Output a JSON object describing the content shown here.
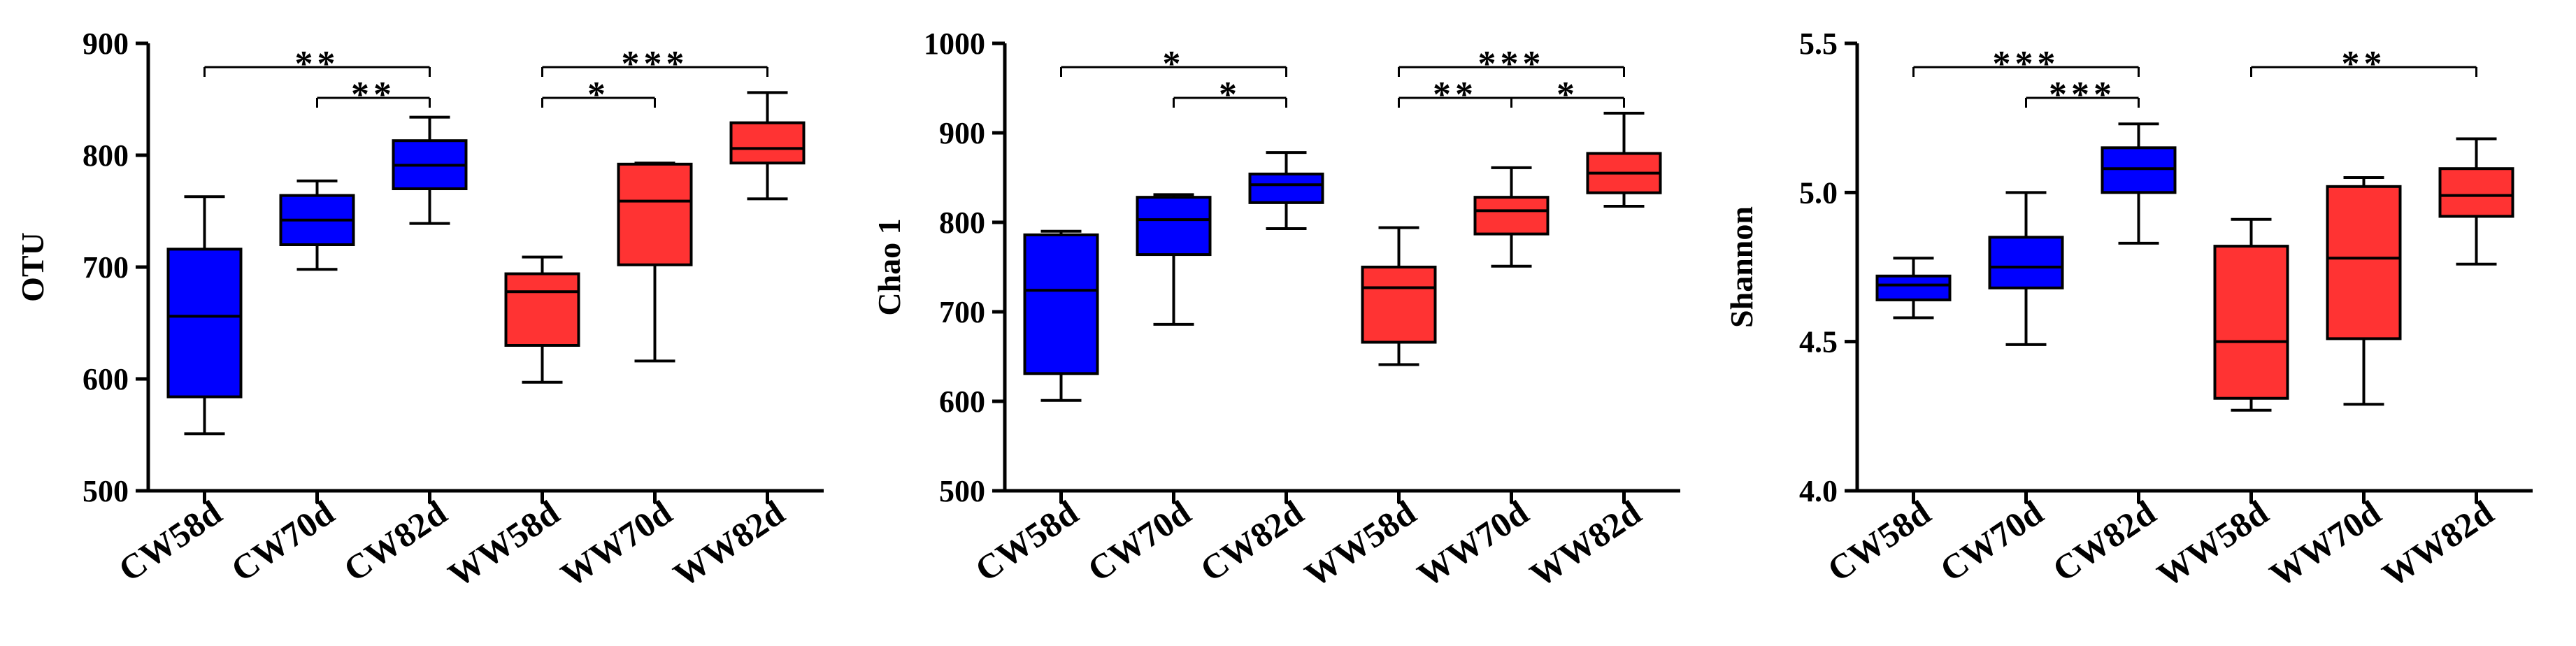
{
  "chart_data": [
    {
      "type": "box",
      "ylabel": "OTU",
      "ylim": [
        500,
        900
      ],
      "yticks": [
        500,
        600,
        700,
        800,
        900
      ],
      "categories": [
        "CW58d",
        "CW70d",
        "CW82d",
        "WW58d",
        "WW70d",
        "WW82d"
      ],
      "colors": [
        "#0000ff",
        "#0000ff",
        "#0000ff",
        "#ff3333",
        "#ff3333",
        "#ff3333"
      ],
      "boxes": [
        {
          "min": 551,
          "q1": 584,
          "median": 656,
          "q3": 716,
          "max": 763
        },
        {
          "min": 698,
          "q1": 720,
          "median": 742,
          "q3": 764,
          "max": 777
        },
        {
          "min": 739,
          "q1": 770,
          "median": 791,
          "q3": 813,
          "max": 834
        },
        {
          "min": 597,
          "q1": 630,
          "median": 678,
          "q3": 694,
          "max": 709
        },
        {
          "min": 616,
          "q1": 702,
          "median": 759,
          "q3": 792,
          "max": 793
        },
        {
          "min": 761,
          "q1": 793,
          "median": 806,
          "q3": 829,
          "max": 856
        }
      ],
      "significance": [
        {
          "from": 0,
          "to": 2,
          "label": "**",
          "level": 2
        },
        {
          "from": 1,
          "to": 2,
          "label": "**",
          "level": 1
        },
        {
          "from": 3,
          "to": 5,
          "label": "***",
          "level": 2
        },
        {
          "from": 3,
          "to": 4,
          "label": "*",
          "level": 1
        }
      ]
    },
    {
      "type": "box",
      "ylabel": "Chao 1",
      "ylim": [
        500,
        1000
      ],
      "yticks": [
        500,
        600,
        700,
        800,
        900,
        1000
      ],
      "categories": [
        "CW58d",
        "CW70d",
        "CW82d",
        "WW58d",
        "WW70d",
        "WW82d"
      ],
      "colors": [
        "#0000ff",
        "#0000ff",
        "#0000ff",
        "#ff3333",
        "#ff3333",
        "#ff3333"
      ],
      "boxes": [
        {
          "min": 601,
          "q1": 631,
          "median": 724,
          "q3": 786,
          "max": 790
        },
        {
          "min": 686,
          "q1": 764,
          "median": 803,
          "q3": 828,
          "max": 831
        },
        {
          "min": 793,
          "q1": 822,
          "median": 842,
          "q3": 854,
          "max": 878
        },
        {
          "min": 641,
          "q1": 666,
          "median": 727,
          "q3": 750,
          "max": 794
        },
        {
          "min": 751,
          "q1": 787,
          "median": 813,
          "q3": 828,
          "max": 861
        },
        {
          "min": 818,
          "q1": 833,
          "median": 855,
          "q3": 877,
          "max": 922
        }
      ],
      "significance": [
        {
          "from": 0,
          "to": 2,
          "label": "*",
          "level": 2
        },
        {
          "from": 1,
          "to": 2,
          "label": "*",
          "level": 1
        },
        {
          "from": 3,
          "to": 5,
          "label": "***",
          "level": 2
        },
        {
          "from": 3,
          "to": 4,
          "label": "**",
          "level": 1
        },
        {
          "from": 4,
          "to": 5,
          "label": "*",
          "level": 1
        }
      ]
    },
    {
      "type": "box",
      "ylabel": "Shannon",
      "ylim": [
        4.0,
        5.5
      ],
      "yticks": [
        "4.0",
        "4.5",
        "5.0",
        "5.5"
      ],
      "categories": [
        "CW58d",
        "CW70d",
        "CW82d",
        "WW58d",
        "WW70d",
        "WW82d"
      ],
      "colors": [
        "#0000ff",
        "#0000ff",
        "#0000ff",
        "#ff3333",
        "#ff3333",
        "#ff3333"
      ],
      "boxes": [
        {
          "min": 4.58,
          "q1": 4.64,
          "median": 4.69,
          "q3": 4.72,
          "max": 4.78
        },
        {
          "min": 4.49,
          "q1": 4.68,
          "median": 4.75,
          "q3": 4.85,
          "max": 5.0
        },
        {
          "min": 4.83,
          "q1": 5.0,
          "median": 5.08,
          "q3": 5.15,
          "max": 5.23
        },
        {
          "min": 4.27,
          "q1": 4.31,
          "median": 4.5,
          "q3": 4.82,
          "max": 4.91
        },
        {
          "min": 4.29,
          "q1": 4.51,
          "median": 4.78,
          "q3": 5.02,
          "max": 5.05
        },
        {
          "min": 4.76,
          "q1": 4.92,
          "median": 4.99,
          "q3": 5.08,
          "max": 5.18
        }
      ],
      "significance": [
        {
          "from": 0,
          "to": 2,
          "label": "***",
          "level": 2
        },
        {
          "from": 1,
          "to": 2,
          "label": "***",
          "level": 1
        },
        {
          "from": 3,
          "to": 5,
          "label": "**",
          "level": 2
        }
      ]
    }
  ]
}
